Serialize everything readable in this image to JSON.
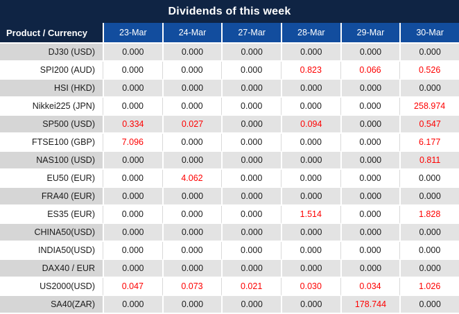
{
  "colors": {
    "title_navy": "#0f2444",
    "header_blue": "#124d9e",
    "label_stripe_gray": "#d6d6d6",
    "cell_stripe_gray": "#e3e3e3",
    "value_red": "#fe0000",
    "text_black": "#1a1a1a"
  },
  "chart_data": {
    "type": "table",
    "title": "Dividends of this week",
    "corner_header": "Product / Currency",
    "columns": [
      "23-Mar",
      "24-Mar",
      "27-Mar",
      "28-Mar",
      "29-Mar",
      "30-Mar"
    ],
    "rows": [
      {
        "label": "DJ30 (USD)",
        "values": [
          "0.000",
          "0.000",
          "0.000",
          "0.000",
          "0.000",
          "0.000"
        ],
        "red": [
          0,
          0,
          0,
          0,
          0,
          0
        ]
      },
      {
        "label": "SPI200 (AUD)",
        "values": [
          "0.000",
          "0.000",
          "0.000",
          "0.823",
          "0.066",
          "0.526"
        ],
        "red": [
          0,
          0,
          0,
          1,
          1,
          1
        ]
      },
      {
        "label": "HSI (HKD)",
        "values": [
          "0.000",
          "0.000",
          "0.000",
          "0.000",
          "0.000",
          "0.000"
        ],
        "red": [
          0,
          0,
          0,
          0,
          0,
          0
        ]
      },
      {
        "label": "Nikkei225 (JPN)",
        "values": [
          "0.000",
          "0.000",
          "0.000",
          "0.000",
          "0.000",
          "258.974"
        ],
        "red": [
          0,
          0,
          0,
          0,
          0,
          1
        ]
      },
      {
        "label": "SP500 (USD)",
        "values": [
          "0.334",
          "0.027",
          "0.000",
          "0.094",
          "0.000",
          "0.547"
        ],
        "red": [
          1,
          1,
          0,
          1,
          0,
          1
        ]
      },
      {
        "label": "FTSE100 (GBP)",
        "values": [
          "7.096",
          "0.000",
          "0.000",
          "0.000",
          "0.000",
          "6.177"
        ],
        "red": [
          1,
          0,
          0,
          0,
          0,
          1
        ]
      },
      {
        "label": "NAS100 (USD)",
        "values": [
          "0.000",
          "0.000",
          "0.000",
          "0.000",
          "0.000",
          "0.811"
        ],
        "red": [
          0,
          0,
          0,
          0,
          0,
          1
        ]
      },
      {
        "label": "EU50 (EUR)",
        "values": [
          "0.000",
          "4.062",
          "0.000",
          "0.000",
          "0.000",
          "0.000"
        ],
        "red": [
          0,
          1,
          0,
          0,
          0,
          0
        ]
      },
      {
        "label": "FRA40 (EUR)",
        "values": [
          "0.000",
          "0.000",
          "0.000",
          "0.000",
          "0.000",
          "0.000"
        ],
        "red": [
          0,
          0,
          0,
          0,
          0,
          0
        ]
      },
      {
        "label": "ES35 (EUR)",
        "values": [
          "0.000",
          "0.000",
          "0.000",
          "1.514",
          "0.000",
          "1.828"
        ],
        "red": [
          0,
          0,
          0,
          1,
          0,
          1
        ]
      },
      {
        "label": "CHINA50(USD)",
        "values": [
          "0.000",
          "0.000",
          "0.000",
          "0.000",
          "0.000",
          "0.000"
        ],
        "red": [
          0,
          0,
          0,
          0,
          0,
          0
        ]
      },
      {
        "label": "INDIA50(USD)",
        "values": [
          "0.000",
          "0.000",
          "0.000",
          "0.000",
          "0.000",
          "0.000"
        ],
        "red": [
          0,
          0,
          0,
          0,
          0,
          0
        ]
      },
      {
        "label": "DAX40 / EUR",
        "values": [
          "0.000",
          "0.000",
          "0.000",
          "0.000",
          "0.000",
          "0.000"
        ],
        "red": [
          0,
          0,
          0,
          0,
          0,
          0
        ]
      },
      {
        "label": "US2000(USD)",
        "values": [
          "0.047",
          "0.073",
          "0.021",
          "0.030",
          "0.034",
          "1.026"
        ],
        "red": [
          1,
          1,
          1,
          1,
          1,
          1
        ]
      },
      {
        "label": "SA40(ZAR)",
        "values": [
          "0.000",
          "0.000",
          "0.000",
          "0.000",
          "178.744",
          "0.000"
        ],
        "red": [
          0,
          0,
          0,
          0,
          1,
          0
        ]
      }
    ]
  }
}
